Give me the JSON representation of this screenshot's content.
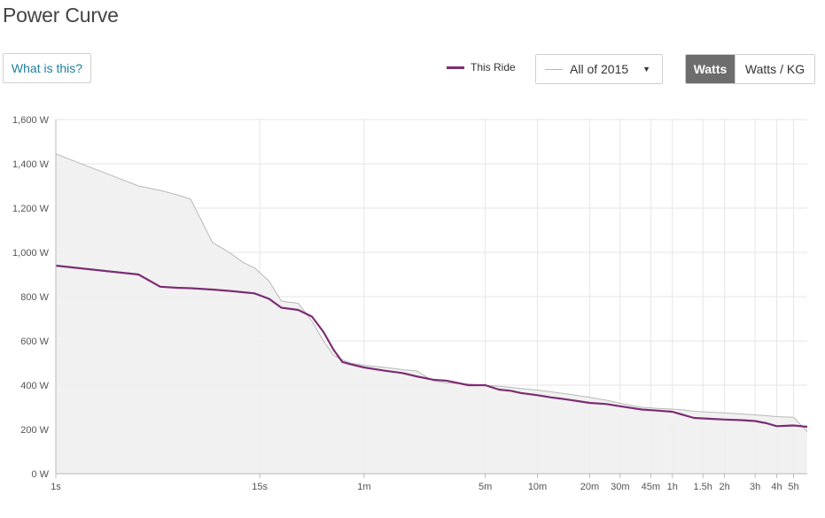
{
  "header": {
    "title": "Power Curve",
    "help_label": "What is this?"
  },
  "legend": {
    "this_ride_label": "This Ride"
  },
  "compare": {
    "selected": "All of 2015"
  },
  "units_toggle": {
    "watts_label": "Watts",
    "watts_per_kg_label": "Watts / KG",
    "active": "Watts"
  },
  "colors": {
    "this_ride": "#7b2d73",
    "compare_line": "#b8b8b8",
    "compare_fill": "#eeeeee",
    "grid": "#e6e6e6",
    "axis": "#b9b9b9"
  },
  "chart_data": {
    "type": "area",
    "xscale": "log",
    "xlabel": "",
    "ylabel": "",
    "ylim": [
      0,
      1600
    ],
    "xlim": [
      1,
      21600
    ],
    "grid": true,
    "y_ticks": [
      0,
      200,
      400,
      600,
      800,
      1000,
      1200,
      1400,
      1600
    ],
    "y_tick_labels": [
      "0 W",
      "200 W",
      "400 W",
      "600 W",
      "800 W",
      "1,000 W",
      "1,200 W",
      "1,400 W",
      "1,600 W"
    ],
    "x_ticks": [
      {
        "label": "1s",
        "seconds": 1
      },
      {
        "label": "15s",
        "seconds": 15
      },
      {
        "label": "1m",
        "seconds": 60
      },
      {
        "label": "5m",
        "seconds": 300
      },
      {
        "label": "10m",
        "seconds": 600
      },
      {
        "label": "20m",
        "seconds": 1200
      },
      {
        "label": "30m",
        "seconds": 1800
      },
      {
        "label": "45m",
        "seconds": 2700
      },
      {
        "label": "1h",
        "seconds": 3600
      },
      {
        "label": "1.5h",
        "seconds": 5400
      },
      {
        "label": "2h",
        "seconds": 7200
      },
      {
        "label": "3h",
        "seconds": 10800
      },
      {
        "label": "4h",
        "seconds": 14400
      },
      {
        "label": "5h",
        "seconds": 18000
      }
    ],
    "series": [
      {
        "name": "This Ride",
        "x": [
          1,
          3,
          4,
          5,
          6,
          8,
          10,
          12,
          14,
          17,
          20,
          25,
          30,
          35,
          40,
          45,
          50,
          60,
          80,
          100,
          120,
          150,
          180,
          240,
          300,
          360,
          420,
          480,
          600,
          720,
          900,
          1200,
          1500,
          1800,
          2400,
          3000,
          3600,
          4200,
          4800,
          6000,
          7200,
          9000,
          10800,
          12600,
          14400,
          18000,
          21600
        ],
        "y": [
          940,
          900,
          845,
          840,
          838,
          832,
          826,
          820,
          815,
          790,
          750,
          740,
          710,
          640,
          560,
          505,
          495,
          480,
          465,
          455,
          440,
          425,
          420,
          400,
          400,
          380,
          375,
          365,
          355,
          345,
          335,
          320,
          315,
          305,
          290,
          285,
          280,
          265,
          252,
          248,
          245,
          242,
          238,
          228,
          215,
          218,
          212
        ]
      },
      {
        "name": "All of 2015",
        "x": [
          1,
          3,
          4,
          5,
          6,
          8,
          10,
          12,
          14,
          17,
          20,
          25,
          30,
          35,
          40,
          45,
          50,
          60,
          80,
          100,
          120,
          150,
          180,
          240,
          300,
          360,
          420,
          480,
          600,
          720,
          900,
          1200,
          1500,
          1800,
          2400,
          3000,
          3600,
          4200,
          4800,
          6000,
          7200,
          9000,
          10800,
          12600,
          14400,
          18000,
          21600
        ],
        "y": [
          1445,
          1300,
          1280,
          1260,
          1240,
          1045,
          1000,
          955,
          930,
          870,
          780,
          770,
          690,
          600,
          535,
          515,
          500,
          490,
          480,
          470,
          465,
          420,
          410,
          405,
          400,
          395,
          390,
          385,
          378,
          370,
          360,
          345,
          332,
          318,
          300,
          295,
          292,
          288,
          282,
          278,
          275,
          270,
          266,
          262,
          258,
          255,
          190
        ]
      }
    ]
  }
}
